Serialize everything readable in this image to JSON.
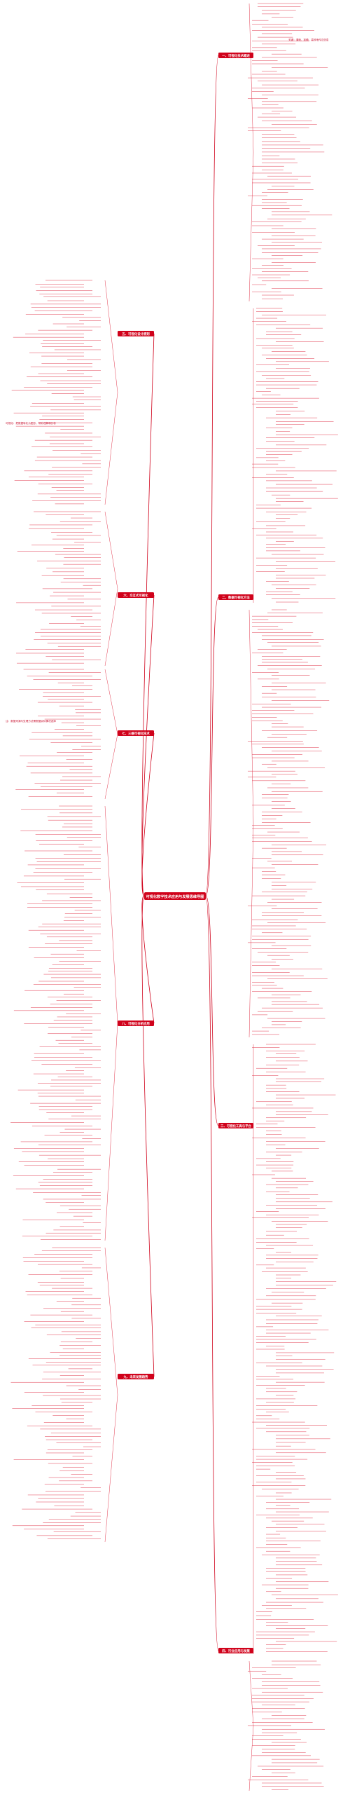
{
  "colors": {
    "accent": "#d0021b",
    "leaf": "#c8102e",
    "background": "#ffffff"
  },
  "root": {
    "label": "可视化数字技术应用与发展思维导图"
  },
  "branches": [
    {
      "label": "一、可视化技术概述",
      "side": "right"
    },
    {
      "label": "二、数据可视化方法",
      "side": "right"
    },
    {
      "label": "三、可视化工具与平台",
      "side": "right"
    },
    {
      "label": "四、行业应用与发展",
      "side": "right"
    },
    {
      "label": "五、可视化设计原则",
      "side": "left"
    },
    {
      "label": "六、交互式可视化",
      "side": "left"
    },
    {
      "label": "七、三维可视化技术",
      "side": "left"
    },
    {
      "label": "八、可视化分析应用",
      "side": "left"
    },
    {
      "label": "九、未来发展趋势",
      "side": "left"
    }
  ],
  "side_notes": [
    {
      "label": "可视化：把数据转化为图形，帮助理解和分析"
    },
    {
      "label": "注：数据来源与处理方法需根据实际情况选择"
    },
    {
      "label": "关键：清晰、准确、高效地传达信息"
    }
  ]
}
